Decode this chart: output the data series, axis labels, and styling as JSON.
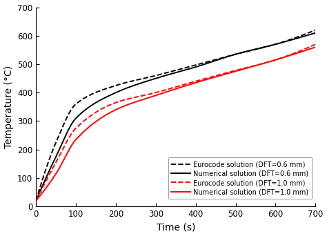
{
  "title": "",
  "xlabel": "Time (s)",
  "ylabel": "Temperature (°C)",
  "xlim": [
    0,
    700
  ],
  "ylim": [
    0,
    700
  ],
  "xticks": [
    0,
    100,
    200,
    300,
    400,
    500,
    600,
    700
  ],
  "yticks": [
    0,
    100,
    200,
    300,
    400,
    500,
    600,
    700
  ],
  "legend": [
    {
      "label": "Eurocode solution (DFT=0.6 mm)",
      "color": "black",
      "linestyle": "--"
    },
    {
      "label": "Numerical solution (DFT=0.6 mm)",
      "color": "black",
      "linestyle": "-"
    },
    {
      "label": "Eurocode solution (DFT=1.0 mm)",
      "color": "red",
      "linestyle": "--"
    },
    {
      "label": "Numerical solution (DFT=1.0 mm)",
      "color": "red",
      "linestyle": "-"
    }
  ],
  "background_color": "#ffffff",
  "figsize": [
    4.74,
    3.42
  ],
  "dpi": 100,
  "key_points_num_06": [
    [
      0,
      20
    ],
    [
      50,
      175
    ],
    [
      100,
      310
    ],
    [
      200,
      400
    ],
    [
      300,
      450
    ],
    [
      400,
      490
    ],
    [
      500,
      535
    ],
    [
      600,
      570
    ],
    [
      700,
      610
    ]
  ],
  "key_points_ec_06": [
    [
      0,
      20
    ],
    [
      50,
      225
    ],
    [
      100,
      360
    ],
    [
      200,
      425
    ],
    [
      300,
      460
    ],
    [
      400,
      497
    ],
    [
      500,
      535
    ],
    [
      600,
      570
    ],
    [
      700,
      620
    ]
  ],
  "key_points_num_10": [
    [
      0,
      20
    ],
    [
      50,
      115
    ],
    [
      100,
      235
    ],
    [
      200,
      340
    ],
    [
      300,
      390
    ],
    [
      400,
      435
    ],
    [
      500,
      475
    ],
    [
      600,
      515
    ],
    [
      700,
      560
    ]
  ],
  "key_points_ec_10": [
    [
      0,
      20
    ],
    [
      50,
      155
    ],
    [
      100,
      275
    ],
    [
      200,
      365
    ],
    [
      300,
      400
    ],
    [
      400,
      440
    ],
    [
      500,
      478
    ],
    [
      600,
      515
    ],
    [
      700,
      570
    ]
  ]
}
